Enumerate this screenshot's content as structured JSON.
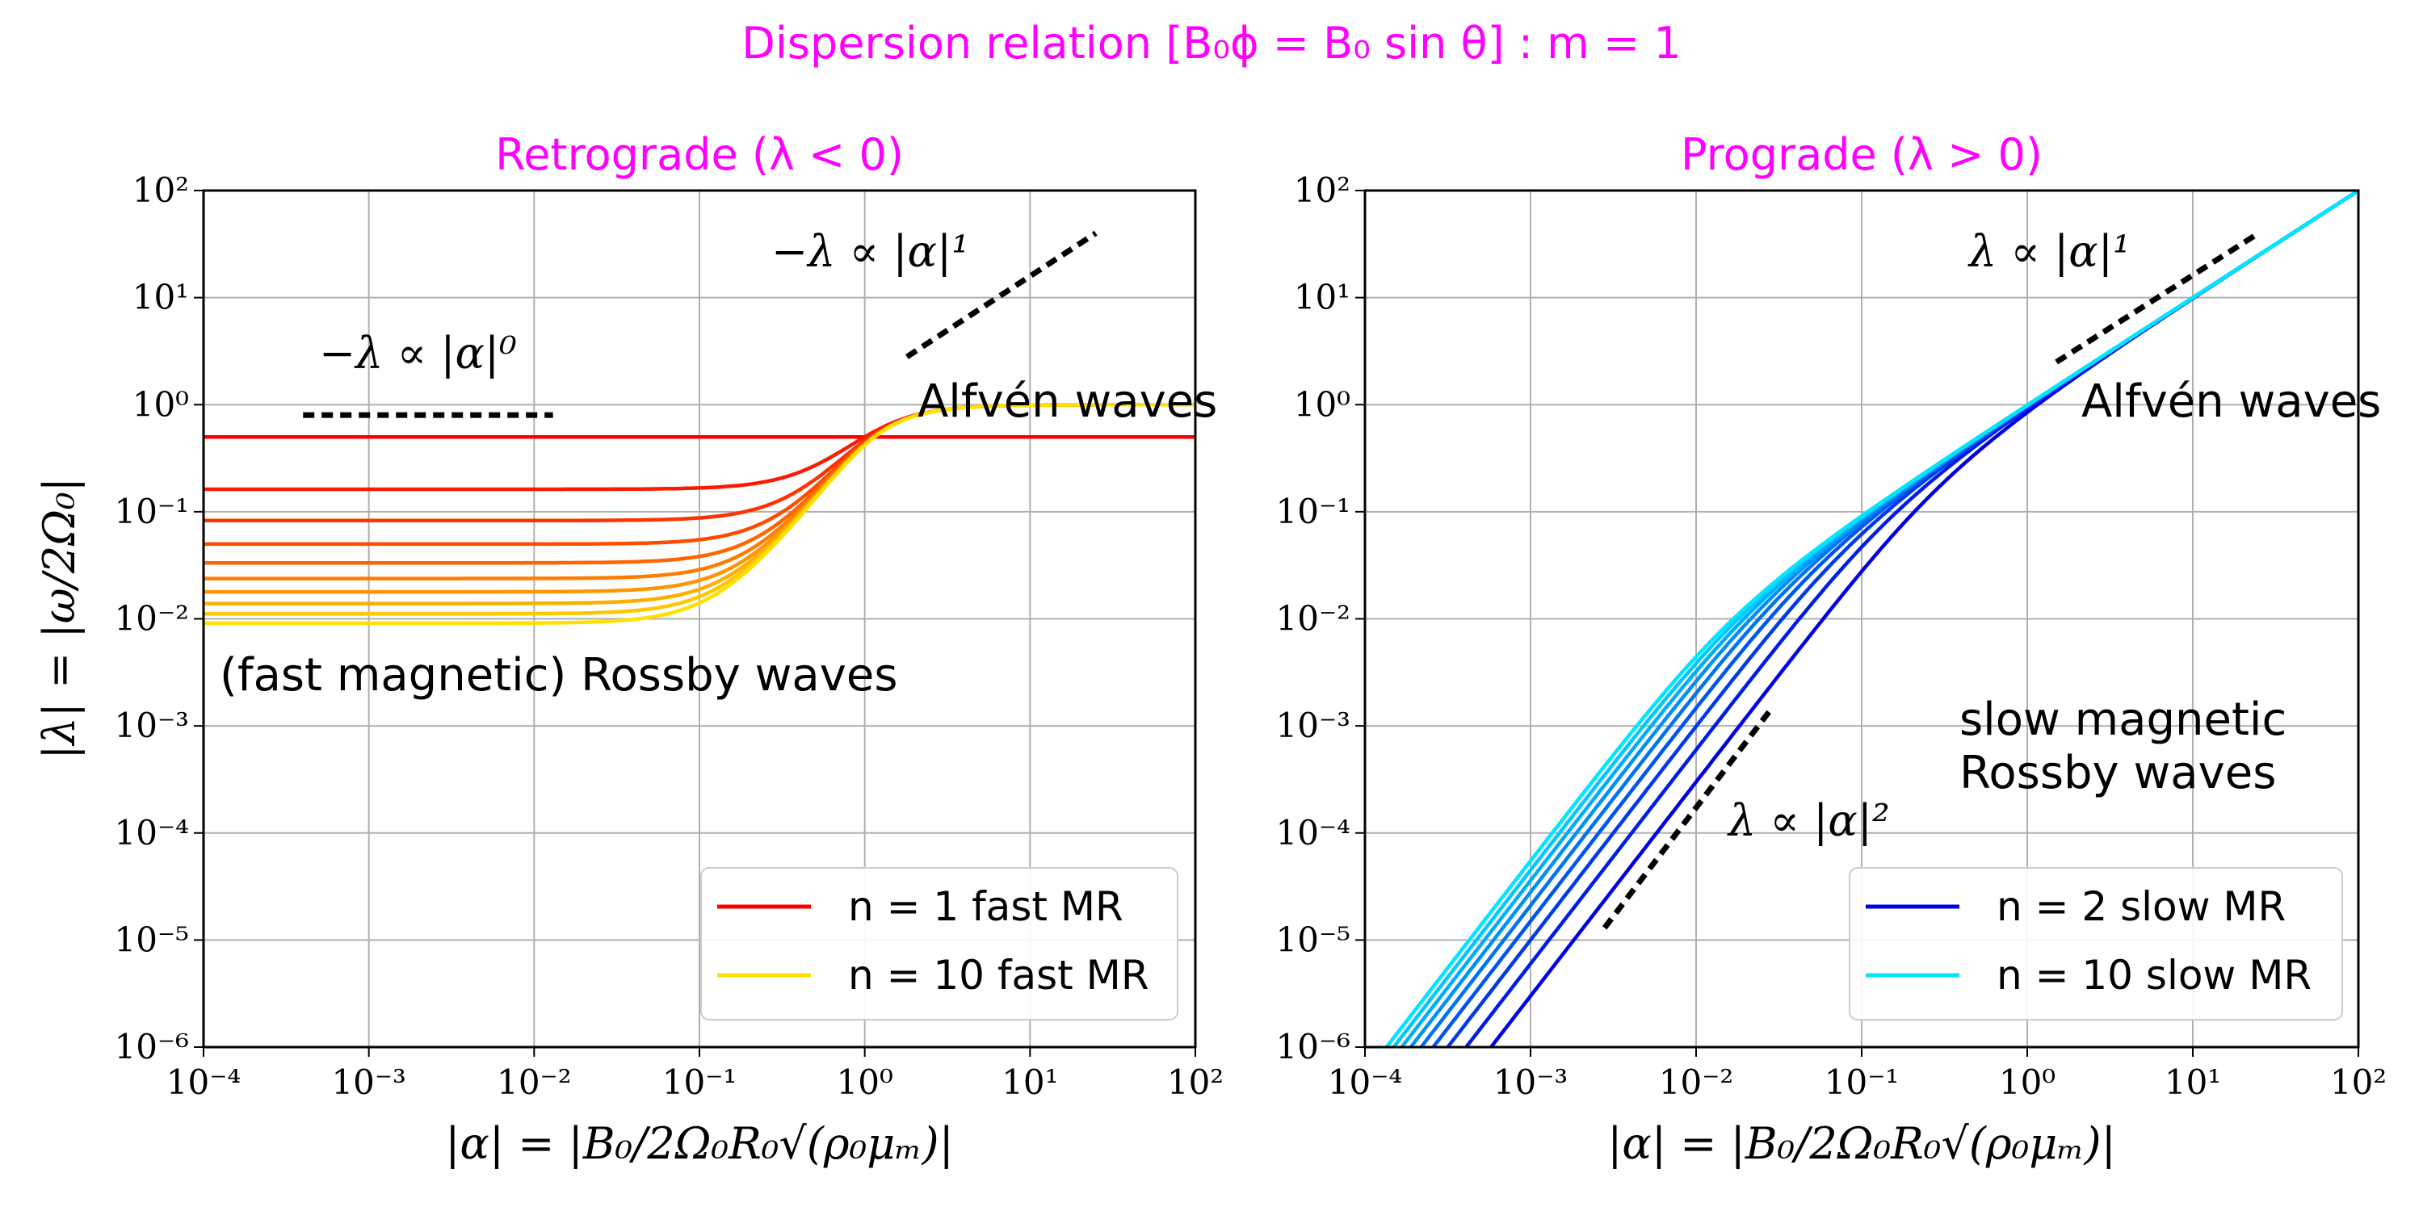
{
  "suptitle": "Dispersion relation [B₀ϕ = B₀ sin θ] : m = 1",
  "title_color": "#ff00ff",
  "chart_data": [
    {
      "type": "line",
      "title": "Retrograde (λ < 0)",
      "xlabel": "|α| = |B₀/2Ω₀R₀√(ρ₀μₘ)|",
      "ylabel": "|λ| = |ω/2Ω₀|",
      "xscale": "log",
      "yscale": "log",
      "xlim": [
        0.0001,
        100
      ],
      "ylim": [
        1e-06,
        100
      ],
      "x_tick_labels": [
        "10⁻⁴",
        "10⁻³",
        "10⁻²",
        "10⁻¹",
        "10⁰",
        "10¹",
        "10²"
      ],
      "y_tick_labels": [
        "10⁻⁶",
        "10⁻⁵",
        "10⁻⁴",
        "10⁻³",
        "10⁻²",
        "10⁻¹",
        "10⁰",
        "10¹",
        "10²"
      ],
      "grid": true,
      "legend_position": "lower-right",
      "legend": [
        {
          "label": "n = 1 fast MR",
          "color": "#ff0000"
        },
        {
          "label": "n = 10 fast MR",
          "color": "#ffe000"
        }
      ],
      "color_scale": [
        "#ff0000",
        "#ffe000"
      ],
      "series": [
        {
          "name": "n = 1 fast MR",
          "model": "fast",
          "n": 1
        },
        {
          "model": "fast",
          "n": 2
        },
        {
          "model": "fast",
          "n": 3
        },
        {
          "model": "fast",
          "n": 4
        },
        {
          "model": "fast",
          "n": 5
        },
        {
          "model": "fast",
          "n": 6
        },
        {
          "model": "fast",
          "n": 7
        },
        {
          "model": "fast",
          "n": 8
        },
        {
          "model": "fast",
          "n": 9
        },
        {
          "name": "n = 10 fast MR",
          "model": "fast",
          "n": 10
        }
      ],
      "reference_lines": [
        {
          "label": "−λ ∝ |α|⁰",
          "x": [
            0.0004,
            0.013
          ],
          "y": [
            0.8,
            0.8
          ]
        },
        {
          "label": "−λ ∝ |α|¹",
          "x": [
            1.8,
            25
          ],
          "y": [
            2.8,
            40
          ]
        }
      ],
      "annotations": [
        "Alfvén waves",
        "(fast magnetic) Rossby waves"
      ]
    },
    {
      "type": "line",
      "title": "Prograde (λ > 0)",
      "xlabel": "|α| = |B₀/2Ω₀R₀√(ρ₀μₘ)|",
      "ylabel": "",
      "xscale": "log",
      "yscale": "log",
      "xlim": [
        0.0001,
        100
      ],
      "ylim": [
        1e-06,
        100
      ],
      "x_tick_labels": [
        "10⁻⁴",
        "10⁻³",
        "10⁻²",
        "10⁻¹",
        "10⁰",
        "10¹",
        "10²"
      ],
      "y_tick_labels": [
        "10⁻⁶",
        "10⁻⁵",
        "10⁻⁴",
        "10⁻³",
        "10⁻²",
        "10⁻¹",
        "10⁰",
        "10¹",
        "10²"
      ],
      "grid": true,
      "legend_position": "lower-right",
      "legend": [
        {
          "label": "n = 2 slow MR",
          "color": "#0000e6"
        },
        {
          "label": "n = 10 slow MR",
          "color": "#00e6ff"
        }
      ],
      "color_scale": [
        "#0000e6",
        "#00e6ff"
      ],
      "series": [
        {
          "name": "n = 2 slow MR",
          "model": "slow",
          "n": 2
        },
        {
          "model": "slow",
          "n": 3
        },
        {
          "model": "slow",
          "n": 4
        },
        {
          "model": "slow",
          "n": 5
        },
        {
          "model": "slow",
          "n": 6
        },
        {
          "model": "slow",
          "n": 7
        },
        {
          "model": "slow",
          "n": 8
        },
        {
          "model": "slow",
          "n": 9
        },
        {
          "name": "n = 10 slow MR",
          "model": "slow",
          "n": 10
        }
      ],
      "reference_lines": [
        {
          "label": "λ ∝ |α|¹",
          "x": [
            1.5,
            25
          ],
          "y": [
            2.5,
            40
          ]
        },
        {
          "label": "λ ∝ |α|²",
          "x": [
            0.0028,
            0.029
          ],
          "y": [
            1.3e-05,
            0.0015
          ]
        }
      ],
      "annotations": [
        "Alfvén waves",
        "slow magnetic",
        "Rossby waves"
      ]
    }
  ]
}
